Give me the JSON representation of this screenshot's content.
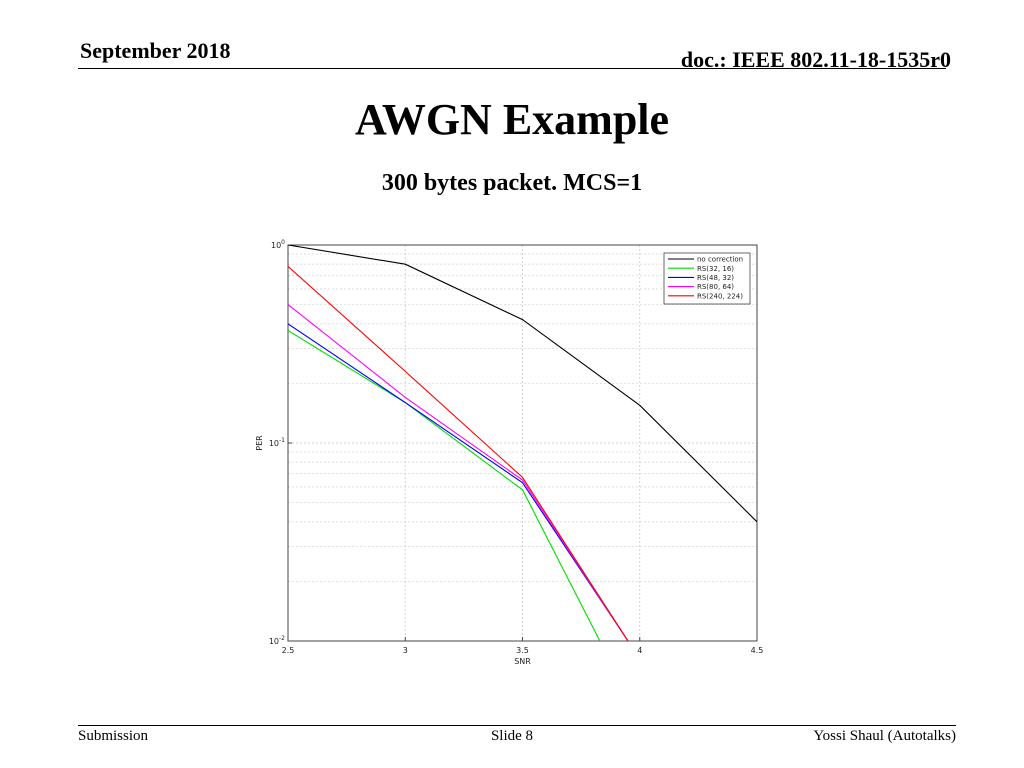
{
  "header": {
    "date": "September 2018",
    "doc": "doc.: IEEE 802.11-18-1535r0"
  },
  "slide": {
    "title": "AWGN Example",
    "subtitle": "300 bytes packet. MCS=1"
  },
  "footer": {
    "left": "Submission",
    "center": "Slide 8",
    "right": "Yossi Shaul (Autotalks)"
  },
  "chart_data": {
    "type": "line",
    "xlabel": "SNR",
    "ylabel": "PER",
    "xlim": [
      2.5,
      4.5
    ],
    "ylim": [
      0.01,
      1
    ],
    "yscale": "log",
    "x_ticks": [
      2.5,
      3,
      3.5,
      4,
      4.5
    ],
    "x_tick_labels": [
      "2.5",
      "3",
      "3.5",
      "4",
      "4.5"
    ],
    "y_ticks": [
      1,
      0.1,
      0.01
    ],
    "y_tick_labels": [
      {
        "base": "10",
        "exp": "0"
      },
      {
        "base": "10",
        "exp": "-1"
      },
      {
        "base": "10",
        "exp": "-2"
      }
    ],
    "grid": true,
    "legend_position": "top-right",
    "series": [
      {
        "name": "no correction",
        "color": "#000000",
        "x": [
          2.5,
          3,
          3.5,
          4,
          4.5
        ],
        "y": [
          1.0,
          0.8,
          0.42,
          0.155,
          0.04
        ]
      },
      {
        "name": "RS(32, 16)",
        "color": "#00dd00",
        "x": [
          2.5,
          3,
          3.5,
          3.83
        ],
        "y": [
          0.37,
          0.16,
          0.058,
          0.01
        ]
      },
      {
        "name": "RS(48, 32)",
        "color": "#0000ff",
        "x": [
          2.5,
          3,
          3.5,
          3.95
        ],
        "y": [
          0.4,
          0.16,
          0.063,
          0.01
        ]
      },
      {
        "name": "RS(80, 64)",
        "color": "#ff00ff",
        "x": [
          2.5,
          3,
          3.5,
          3.95
        ],
        "y": [
          0.5,
          0.17,
          0.065,
          0.01
        ]
      },
      {
        "name": "RS(240, 224)",
        "color": "#ff0000",
        "x": [
          2.5,
          3,
          3.5,
          3.95
        ],
        "y": [
          0.78,
          0.23,
          0.067,
          0.01
        ]
      }
    ]
  }
}
